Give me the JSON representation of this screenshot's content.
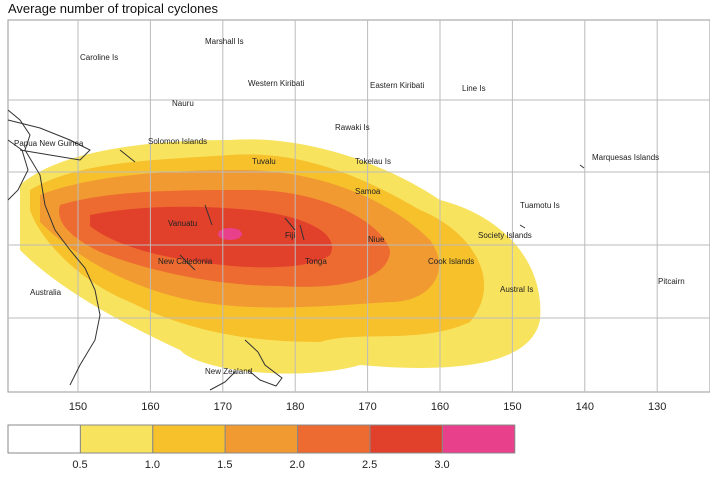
{
  "header": {
    "title": "Average number of tropical cyclones"
  },
  "map": {
    "longitude_labels": [
      "150",
      "160",
      "170",
      "180",
      "170",
      "160",
      "150",
      "140",
      "130"
    ],
    "places": [
      "Marshall Is",
      "Caroline Is",
      "Western Kiribati",
      "Eastern Kiribati",
      "Line Is",
      "Nauru",
      "Rawaki Is",
      "Solomon Islands",
      "Papua New Guinea",
      "Tuvalu",
      "Tokelau Is",
      "Samoa",
      "Marquesas Islands",
      "Tuamotu Is",
      "Vanuatu",
      "Fiji",
      "Niue",
      "Society Islands",
      "New Caledonia",
      "Tonga",
      "Cook Islands",
      "Austral Is",
      "Pitcairn",
      "Australia",
      "New Zealand"
    ]
  },
  "legend": {
    "colors": [
      "#ffffff",
      "#f8e35e",
      "#f7c12c",
      "#f29a32",
      "#ed6a30",
      "#e1402b",
      "#e8408a"
    ],
    "ticks": [
      "0.5",
      "1.0",
      "1.5",
      "2.0",
      "2.5",
      "3.0"
    ]
  }
}
